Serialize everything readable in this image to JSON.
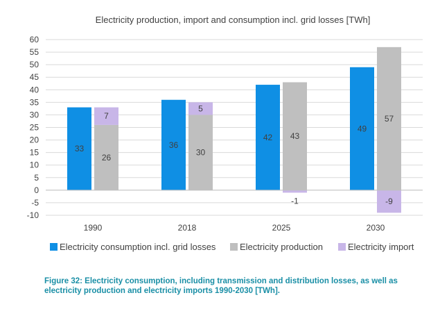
{
  "chart_data": {
    "type": "bar",
    "title": "Electricity production, import and consumption incl. grid losses [TWh]",
    "categories": [
      "1990",
      "2018",
      "2025",
      "2030"
    ],
    "series": [
      {
        "name": "Electricity consumption incl. grid losses",
        "values": [
          33,
          36,
          42,
          49
        ],
        "color": "#0f8fe4",
        "labels": [
          "33",
          "36",
          "42",
          "49"
        ],
        "stack": "a"
      },
      {
        "name": "Electricity production",
        "values": [
          26,
          30,
          43,
          57
        ],
        "color": "#bfbfbf",
        "labels": [
          "26",
          "30",
          "43",
          "57"
        ],
        "stack": "b"
      },
      {
        "name": "Electricity import",
        "values": [
          7,
          5,
          -1,
          -9
        ],
        "color": "#c8b6e8",
        "labels": [
          "7",
          "5",
          "-1",
          "-9"
        ],
        "stack": "b"
      }
    ],
    "ylim": [
      -10,
      60
    ],
    "yticks": [
      -10,
      -5,
      0,
      5,
      10,
      15,
      20,
      25,
      30,
      35,
      40,
      45,
      50,
      55,
      60
    ],
    "xlabel": "",
    "ylabel": "",
    "grid": true,
    "legend_position": "bottom"
  },
  "caption": "Figure 32: Electricity consumption, including transmission and distribution losses, as well as electricity production and electricity imports 1990-2030 [TWh]."
}
